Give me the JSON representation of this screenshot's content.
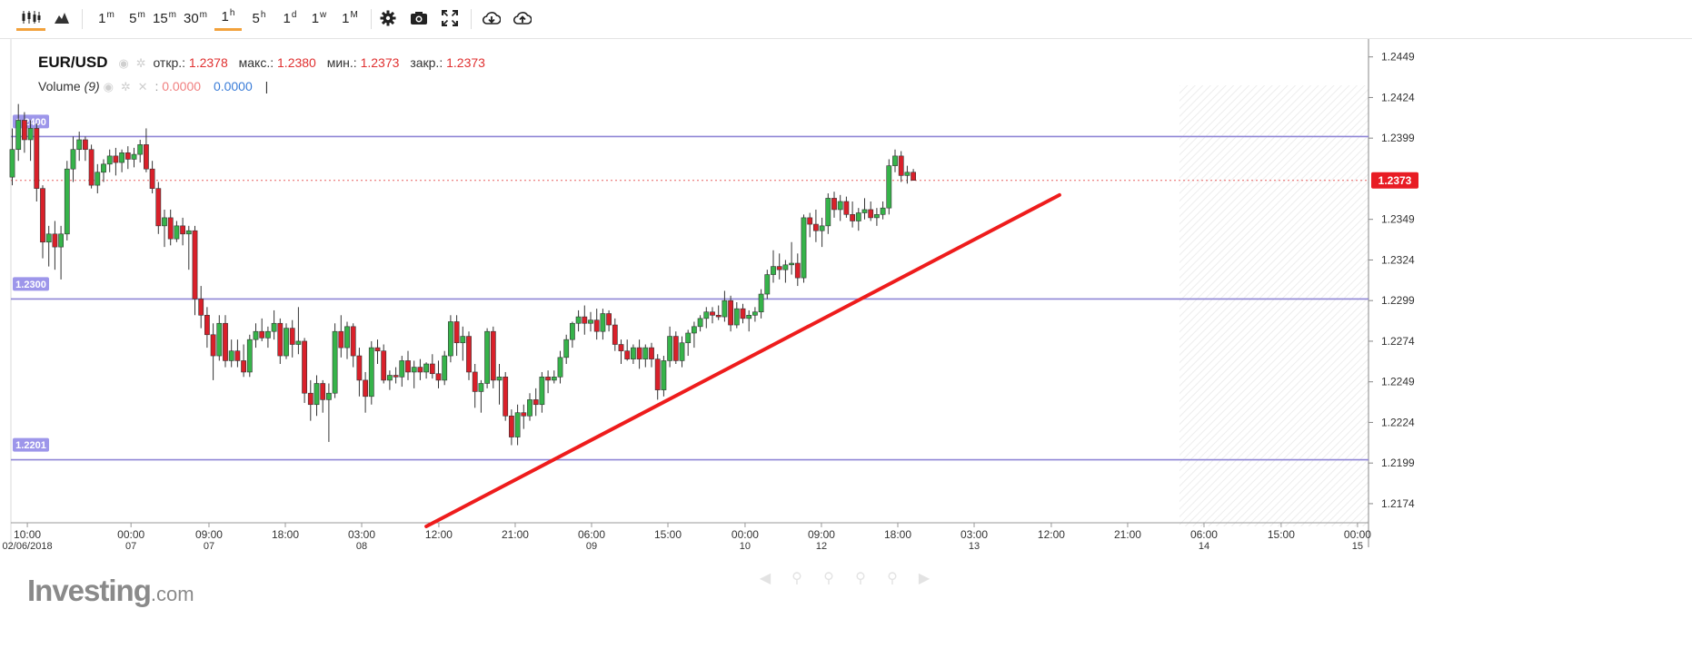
{
  "toolbar": {
    "chart_style_buttons": [
      {
        "name": "candles-icon",
        "active": true
      },
      {
        "name": "area-icon",
        "active": false
      }
    ],
    "intervals": [
      {
        "base": "1",
        "sup": "m"
      },
      {
        "base": "5",
        "sup": "m"
      },
      {
        "base": "15",
        "sup": "m"
      },
      {
        "base": "30",
        "sup": "m"
      },
      {
        "base": "1",
        "sup": "h",
        "active": true
      },
      {
        "base": "5",
        "sup": "h"
      },
      {
        "base": "1",
        "sup": "d"
      },
      {
        "base": "1",
        "sup": "w"
      },
      {
        "base": "1",
        "sup": "M"
      }
    ],
    "tool_icons": [
      "gear-icon",
      "camera-icon",
      "fullscreen-icon",
      "download-icon",
      "upload-icon"
    ]
  },
  "legend": {
    "symbol": "EUR/USD",
    "open_label": "откр.:",
    "open_value": "1.2378",
    "high_label": "макс.:",
    "high_value": "1.2380",
    "low_label": "мин.:",
    "low_value": "1.2373",
    "close_label": "закр.:",
    "close_value": "1.2373",
    "volume_label": "Volume",
    "volume_param": "(9)",
    "volume_value1": "0.0000",
    "volume_value2": "0.0000",
    "volume_sep": "|"
  },
  "watermark": {
    "brand": "Investing",
    "suffix": ".com"
  },
  "colors": {
    "up": "#36b34a",
    "down": "#d9202a",
    "level_line": "#8f86d6",
    "trend_line": "#ee1c1c",
    "price_tag": "#e81c24",
    "active_tab": "#f2a13b"
  },
  "chart_data": {
    "type": "candlestick",
    "title": "EUR/USD",
    "interval": "1h",
    "ylim": [
      1.216,
      1.246
    ],
    "y_ticks": [
      "1.2449",
      "1.2424",
      "1.2399",
      "1.2349",
      "1.2324",
      "1.2299",
      "1.2274",
      "1.2249",
      "1.2224",
      "1.2199",
      "1.2174"
    ],
    "current_price": "1.2373",
    "x_ticks": [
      {
        "time": "10:00",
        "date": "02/06/2018"
      },
      {
        "time": "00:00",
        "date": "07"
      },
      {
        "time": "09:00",
        "date": "07"
      },
      {
        "time": "18:00",
        "date": ""
      },
      {
        "time": "03:00",
        "date": "08"
      },
      {
        "time": "12:00",
        "date": ""
      },
      {
        "time": "21:00",
        "date": ""
      },
      {
        "time": "06:00",
        "date": "09"
      },
      {
        "time": "15:00",
        "date": ""
      },
      {
        "time": "00:00",
        "date": "10"
      },
      {
        "time": "09:00",
        "date": "12"
      },
      {
        "time": "18:00",
        "date": ""
      },
      {
        "time": "03:00",
        "date": "13"
      },
      {
        "time": "12:00",
        "date": ""
      },
      {
        "time": "21:00",
        "date": ""
      },
      {
        "time": "06:00",
        "date": "14"
      },
      {
        "time": "15:00",
        "date": ""
      },
      {
        "time": "00:00",
        "date": "15"
      }
    ],
    "horizontal_levels": [
      {
        "label": "1.2400",
        "value": 1.24
      },
      {
        "label": "1.2300",
        "value": 1.23
      },
      {
        "label": "1.2201",
        "value": 1.2201
      }
    ],
    "trend_line": {
      "start_bar": 68,
      "start_price": 1.216,
      "end_bar": 172,
      "end_price": 1.2364
    },
    "candles": [
      [
        1.2375,
        1.2405,
        1.237,
        1.2392
      ],
      [
        1.2392,
        1.242,
        1.2385,
        1.241
      ],
      [
        1.241,
        1.2415,
        1.239,
        1.2398
      ],
      [
        1.2398,
        1.241,
        1.2385,
        1.2405
      ],
      [
        1.2405,
        1.2408,
        1.236,
        1.2368
      ],
      [
        1.2368,
        1.237,
        1.2325,
        1.2335
      ],
      [
        1.2335,
        1.2345,
        1.232,
        1.234
      ],
      [
        1.234,
        1.2348,
        1.2318,
        1.2332
      ],
      [
        1.2332,
        1.2345,
        1.2312,
        1.234
      ],
      [
        1.234,
        1.2385,
        1.2336,
        1.238
      ],
      [
        1.238,
        1.24,
        1.2372,
        1.2392
      ],
      [
        1.2392,
        1.2403,
        1.2385,
        1.2398
      ],
      [
        1.2398,
        1.24,
        1.2385,
        1.2392
      ],
      [
        1.2392,
        1.2395,
        1.2368,
        1.237
      ],
      [
        1.237,
        1.2383,
        1.2365,
        1.2378
      ],
      [
        1.2378,
        1.2386,
        1.2372,
        1.2383
      ],
      [
        1.2383,
        1.2392,
        1.2378,
        1.2388
      ],
      [
        1.2388,
        1.2393,
        1.2376,
        1.2384
      ],
      [
        1.2384,
        1.2392,
        1.2378,
        1.239
      ],
      [
        1.239,
        1.2394,
        1.238,
        1.2386
      ],
      [
        1.2386,
        1.2393,
        1.2381,
        1.2389
      ],
      [
        1.2389,
        1.2398,
        1.2384,
        1.2395
      ],
      [
        1.2395,
        1.2405,
        1.2378,
        1.238
      ],
      [
        1.238,
        1.2385,
        1.2365,
        1.2368
      ],
      [
        1.2368,
        1.2372,
        1.234,
        1.2345
      ],
      [
        1.2345,
        1.2355,
        1.2332,
        1.235
      ],
      [
        1.235,
        1.2355,
        1.2333,
        1.2337
      ],
      [
        1.2337,
        1.2348,
        1.2335,
        1.2345
      ],
      [
        1.2345,
        1.235,
        1.2333,
        1.234
      ],
      [
        1.234,
        1.2345,
        1.2318,
        1.2342
      ],
      [
        1.2342,
        1.2345,
        1.229,
        1.23
      ],
      [
        1.23,
        1.2308,
        1.2282,
        1.229
      ],
      [
        1.229,
        1.2295,
        1.227,
        1.2278
      ],
      [
        1.2278,
        1.2285,
        1.225,
        1.2265
      ],
      [
        1.2265,
        1.229,
        1.2262,
        1.2285
      ],
      [
        1.2285,
        1.229,
        1.2258,
        1.2262
      ],
      [
        1.2262,
        1.2275,
        1.2258,
        1.2268
      ],
      [
        1.2268,
        1.2275,
        1.2258,
        1.2262
      ],
      [
        1.2262,
        1.2272,
        1.2252,
        1.2255
      ],
      [
        1.2255,
        1.2278,
        1.2252,
        1.2275
      ],
      [
        1.2275,
        1.2285,
        1.227,
        1.228
      ],
      [
        1.228,
        1.2288,
        1.2274,
        1.2276
      ],
      [
        1.2276,
        1.2283,
        1.227,
        1.228
      ],
      [
        1.228,
        1.2293,
        1.2275,
        1.2285
      ],
      [
        1.2285,
        1.2288,
        1.226,
        1.2265
      ],
      [
        1.2265,
        1.2285,
        1.2263,
        1.2282
      ],
      [
        1.2282,
        1.2287,
        1.2264,
        1.2272
      ],
      [
        1.2272,
        1.2295,
        1.2266,
        1.2274
      ],
      [
        1.2274,
        1.2276,
        1.2236,
        1.2242
      ],
      [
        1.2242,
        1.225,
        1.2225,
        1.2235
      ],
      [
        1.2235,
        1.2253,
        1.2228,
        1.2248
      ],
      [
        1.2248,
        1.225,
        1.223,
        1.2238
      ],
      [
        1.2238,
        1.2248,
        1.2212,
        1.2242
      ],
      [
        1.2242,
        1.2285,
        1.2239,
        1.228
      ],
      [
        1.228,
        1.229,
        1.2264,
        1.227
      ],
      [
        1.227,
        1.2286,
        1.2263,
        1.2283
      ],
      [
        1.2283,
        1.2285,
        1.2258,
        1.2265
      ],
      [
        1.2265,
        1.227,
        1.224,
        1.225
      ],
      [
        1.225,
        1.2255,
        1.223,
        1.224
      ],
      [
        1.224,
        1.2274,
        1.2235,
        1.227
      ],
      [
        1.227,
        1.2275,
        1.226,
        1.2268
      ],
      [
        1.2268,
        1.2272,
        1.2248,
        1.225
      ],
      [
        1.225,
        1.2256,
        1.2244,
        1.2253
      ],
      [
        1.2253,
        1.2258,
        1.2248,
        1.2252
      ],
      [
        1.2252,
        1.2265,
        1.2246,
        1.2262
      ],
      [
        1.2262,
        1.2268,
        1.225,
        1.2255
      ],
      [
        1.2255,
        1.2262,
        1.2245,
        1.2258
      ],
      [
        1.2258,
        1.2263,
        1.225,
        1.2255
      ],
      [
        1.2255,
        1.2261,
        1.2251,
        1.226
      ],
      [
        1.226,
        1.2266,
        1.2251,
        1.2254
      ],
      [
        1.2254,
        1.2262,
        1.2245,
        1.225
      ],
      [
        1.225,
        1.2268,
        1.2247,
        1.2265
      ],
      [
        1.2265,
        1.229,
        1.2261,
        1.2286
      ],
      [
        1.2286,
        1.229,
        1.2265,
        1.2273
      ],
      [
        1.2273,
        1.2283,
        1.2262,
        1.2277
      ],
      [
        1.2277,
        1.228,
        1.225,
        1.2255
      ],
      [
        1.2255,
        1.226,
        1.2233,
        1.2243
      ],
      [
        1.2243,
        1.225,
        1.223,
        1.2248
      ],
      [
        1.2248,
        1.2282,
        1.2245,
        1.228
      ],
      [
        1.228,
        1.2283,
        1.2245,
        1.225
      ],
      [
        1.225,
        1.226,
        1.2235,
        1.2252
      ],
      [
        1.2252,
        1.2255,
        1.2225,
        1.2228
      ],
      [
        1.2228,
        1.2232,
        1.221,
        1.2215
      ],
      [
        1.2215,
        1.2235,
        1.221,
        1.223
      ],
      [
        1.223,
        1.2235,
        1.222,
        1.2228
      ],
      [
        1.2228,
        1.2242,
        1.2225,
        1.2238
      ],
      [
        1.2238,
        1.2245,
        1.2228,
        1.2235
      ],
      [
        1.2235,
        1.2255,
        1.223,
        1.2252
      ],
      [
        1.2252,
        1.2256,
        1.2242,
        1.225
      ],
      [
        1.225,
        1.2256,
        1.2248,
        1.2252
      ],
      [
        1.2252,
        1.2268,
        1.2248,
        1.2264
      ],
      [
        1.2264,
        1.2278,
        1.226,
        1.2275
      ],
      [
        1.2275,
        1.2286,
        1.227,
        1.2285
      ],
      [
        1.2285,
        1.2293,
        1.228,
        1.2289
      ],
      [
        1.2289,
        1.2296,
        1.2278,
        1.2285
      ],
      [
        1.2285,
        1.2292,
        1.228,
        1.2287
      ],
      [
        1.2287,
        1.2294,
        1.2275,
        1.228
      ],
      [
        1.228,
        1.2294,
        1.2275,
        1.2291
      ],
      [
        1.2291,
        1.2293,
        1.228,
        1.2284
      ],
      [
        1.2284,
        1.2288,
        1.2268,
        1.2272
      ],
      [
        1.2272,
        1.2275,
        1.226,
        1.2268
      ],
      [
        1.2268,
        1.2275,
        1.2262,
        1.2263
      ],
      [
        1.2263,
        1.2272,
        1.226,
        1.227
      ],
      [
        1.227,
        1.2275,
        1.2257,
        1.2263
      ],
      [
        1.2263,
        1.2272,
        1.2258,
        1.227
      ],
      [
        1.227,
        1.2273,
        1.2258,
        1.2263
      ],
      [
        1.2263,
        1.2266,
        1.2238,
        1.2244
      ],
      [
        1.2244,
        1.2265,
        1.224,
        1.2262
      ],
      [
        1.2262,
        1.2283,
        1.2258,
        1.2277
      ],
      [
        1.2277,
        1.228,
        1.226,
        1.2262
      ],
      [
        1.2262,
        1.2277,
        1.2258,
        1.2273
      ],
      [
        1.2273,
        1.2281,
        1.2265,
        1.2279
      ],
      [
        1.2279,
        1.2286,
        1.227,
        1.2283
      ],
      [
        1.2283,
        1.229,
        1.228,
        1.2288
      ],
      [
        1.2288,
        1.2295,
        1.2282,
        1.2292
      ],
      [
        1.2292,
        1.2295,
        1.2285,
        1.229
      ],
      [
        1.229,
        1.2296,
        1.2287,
        1.2289
      ],
      [
        1.2289,
        1.2305,
        1.2286,
        1.2299
      ],
      [
        1.2299,
        1.2302,
        1.228,
        1.2284
      ],
      [
        1.2284,
        1.2298,
        1.2282,
        1.2294
      ],
      [
        1.2294,
        1.2297,
        1.2285,
        1.2288
      ],
      [
        1.2288,
        1.2293,
        1.228,
        1.229
      ],
      [
        1.229,
        1.2295,
        1.2286,
        1.2292
      ],
      [
        1.2292,
        1.2306,
        1.2288,
        1.2303
      ],
      [
        1.2303,
        1.2318,
        1.23,
        1.2315
      ],
      [
        1.2315,
        1.233,
        1.231,
        1.232
      ],
      [
        1.232,
        1.2328,
        1.2312,
        1.2318
      ],
      [
        1.2318,
        1.2324,
        1.231,
        1.2321
      ],
      [
        1.2321,
        1.2335,
        1.2315,
        1.2322
      ],
      [
        1.2322,
        1.2328,
        1.2308,
        1.2313
      ],
      [
        1.2313,
        1.2352,
        1.231,
        1.235
      ],
      [
        1.235,
        1.2353,
        1.2338,
        1.2346
      ],
      [
        1.2346,
        1.2355,
        1.2335,
        1.2342
      ],
      [
        1.2342,
        1.235,
        1.2332,
        1.2345
      ],
      [
        1.2345,
        1.2365,
        1.234,
        1.2362
      ],
      [
        1.2362,
        1.2366,
        1.235,
        1.2355
      ],
      [
        1.2355,
        1.2364,
        1.2348,
        1.236
      ],
      [
        1.236,
        1.2363,
        1.235,
        1.2352
      ],
      [
        1.2352,
        1.236,
        1.2344,
        1.2348
      ],
      [
        1.2348,
        1.2356,
        1.2342,
        1.2353
      ],
      [
        1.2353,
        1.2362,
        1.2349,
        1.2355
      ],
      [
        1.2355,
        1.236,
        1.2348,
        1.235
      ],
      [
        1.235,
        1.2356,
        1.2345,
        1.2352
      ],
      [
        1.2352,
        1.236,
        1.2349,
        1.2356
      ],
      [
        1.2356,
        1.2386,
        1.2352,
        1.2382
      ],
      [
        1.2382,
        1.2392,
        1.2378,
        1.2388
      ],
      [
        1.2388,
        1.2391,
        1.2372,
        1.2376
      ],
      [
        1.2376,
        1.2382,
        1.2371,
        1.2378
      ],
      [
        1.2378,
        1.238,
        1.2373,
        1.2373
      ]
    ]
  }
}
